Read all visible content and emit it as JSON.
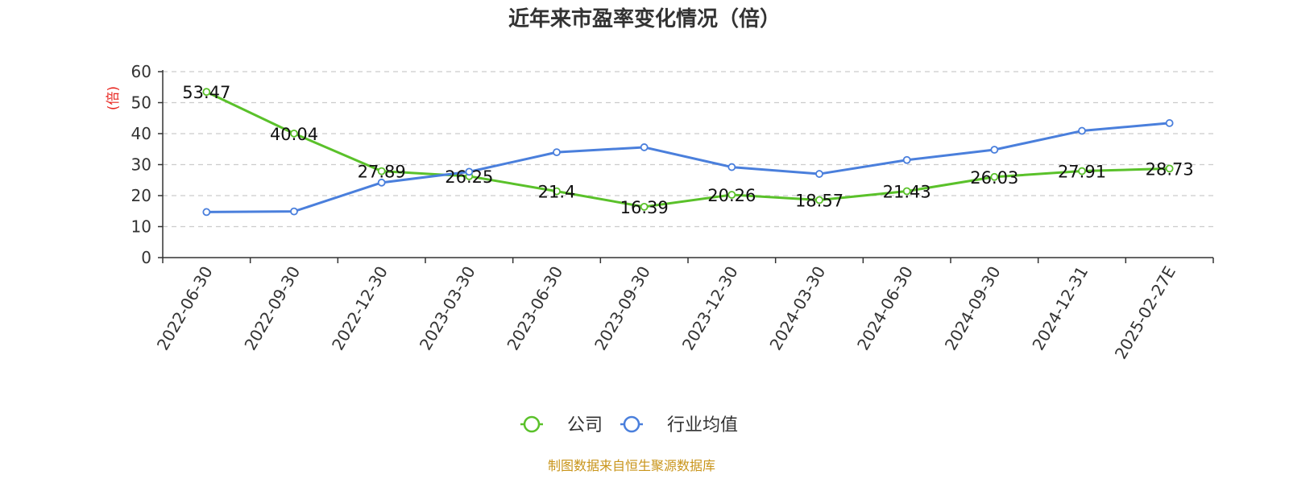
{
  "chart_data": {
    "type": "line",
    "title": "近年来市盈率变化情况（倍）",
    "ylabel": "(倍)",
    "xlabel": "",
    "ylim": [
      0,
      60
    ],
    "yticks": [
      0,
      10,
      20,
      30,
      40,
      50,
      60
    ],
    "grid": true,
    "legend_position": "bottom-center",
    "categories": [
      "2022-06-30",
      "2022-09-30",
      "2022-12-30",
      "2023-03-30",
      "2023-06-30",
      "2023-09-30",
      "2023-12-30",
      "2024-03-30",
      "2024-06-30",
      "2024-09-30",
      "2024-12-31",
      "2025-02-27E"
    ],
    "series": [
      {
        "name": "公司",
        "color": "#5ac12a",
        "values": [
          53.47,
          40.04,
          27.89,
          26.25,
          21.4,
          16.39,
          20.26,
          18.57,
          21.43,
          26.03,
          27.91,
          28.73
        ],
        "labels": [
          "53.47",
          "40.04",
          "27.89",
          "26.25",
          "21.4",
          "16.39",
          "20.26",
          "18.57",
          "21.43",
          "26.03",
          "27.91",
          "28.73"
        ]
      },
      {
        "name": "行业均值",
        "color": "#4a7fdc",
        "values": [
          14.7,
          14.9,
          24.2,
          27.7,
          34.0,
          35.6,
          29.2,
          27.0,
          31.5,
          34.8,
          40.9,
          43.4
        ]
      }
    ],
    "source": "制图数据来自恒生聚源数据库"
  },
  "colors": {
    "ylabel": "#e8251f",
    "source": "#c9951b",
    "grid": "#cccccc",
    "axis": "#333333"
  }
}
